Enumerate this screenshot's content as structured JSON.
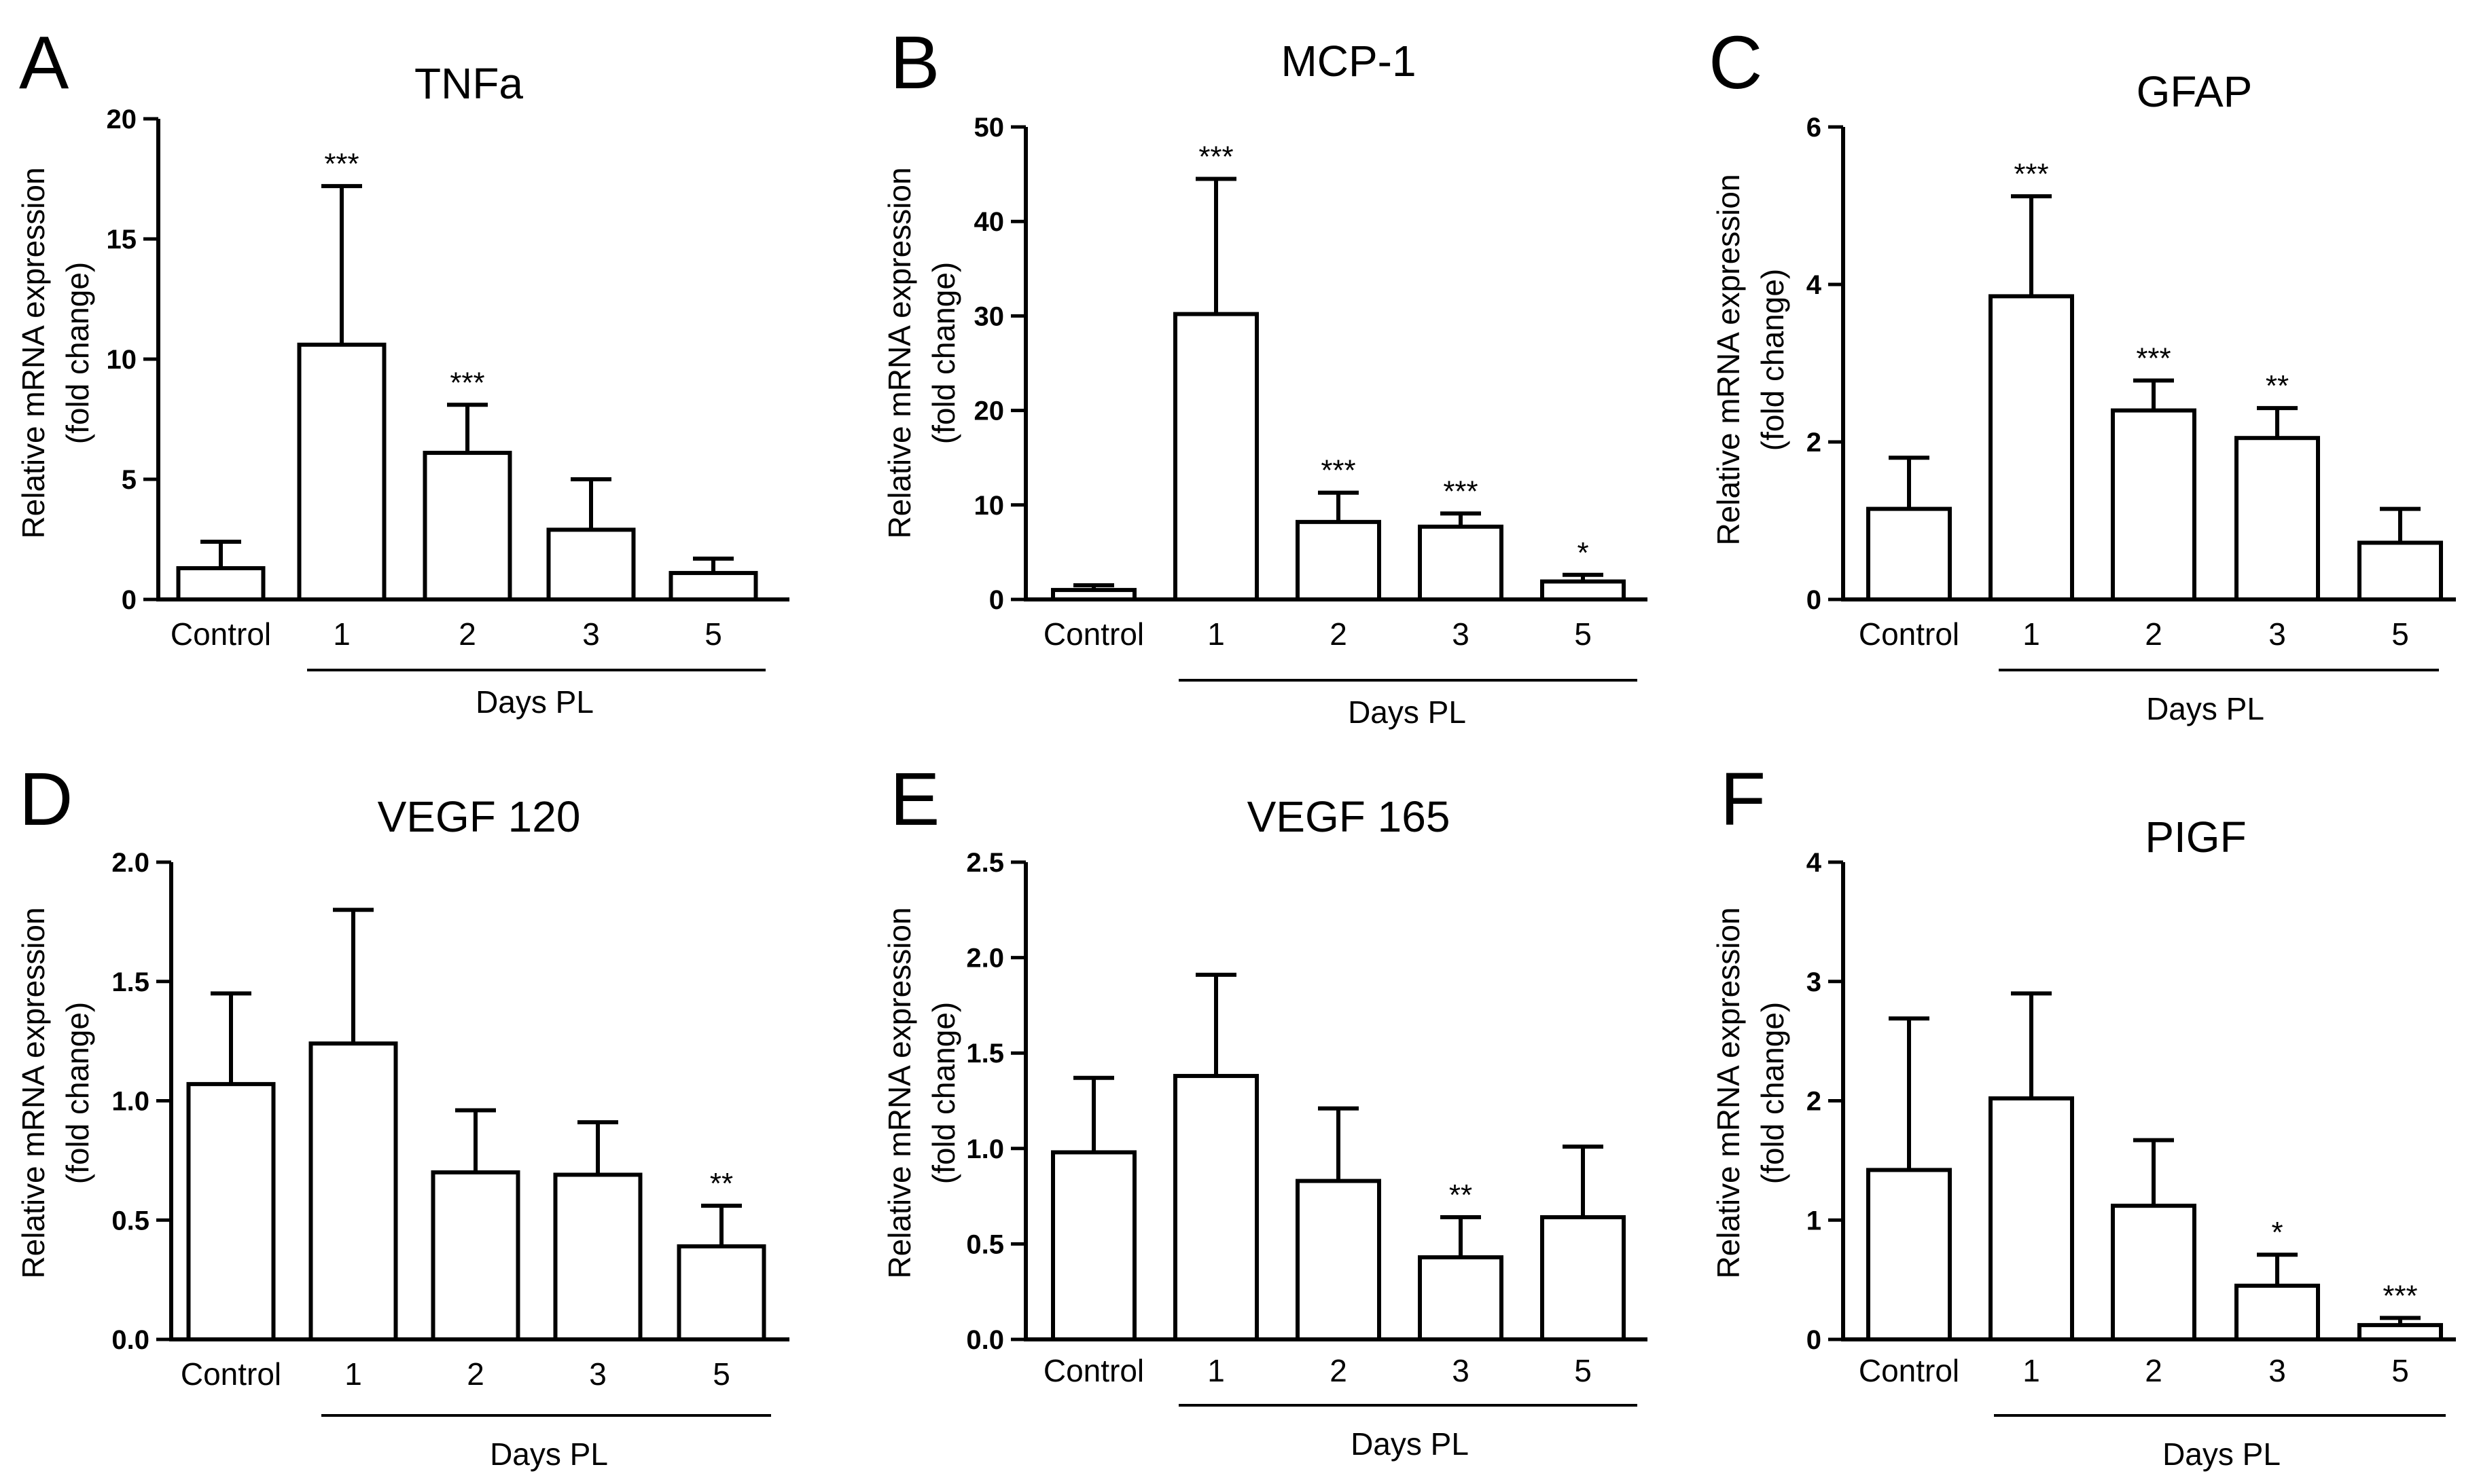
{
  "chart_data": [
    {
      "panel": "A",
      "type": "bar",
      "title": "TNFa",
      "ylabel": [
        "Relative mRNA expression",
        "(fold change)"
      ],
      "xlabel": "Days PL",
      "categories": [
        "Control",
        "1",
        "2",
        "3",
        "5"
      ],
      "values": [
        1.3,
        10.6,
        6.1,
        2.9,
        1.1
      ],
      "errors": [
        1.1,
        6.6,
        2.0,
        2.1,
        0.6
      ],
      "significance": [
        "",
        "***",
        "***",
        "",
        ""
      ],
      "ylim": [
        0,
        20
      ],
      "yticks": [
        "0",
        "5",
        "10",
        "15",
        "20"
      ],
      "ytick_values": [
        0,
        5,
        10,
        15,
        20
      ]
    },
    {
      "panel": "B",
      "type": "bar",
      "title": "MCP-1",
      "ylabel": [
        "Relative mRNA expression",
        "(fold change)"
      ],
      "xlabel": "Days PL",
      "categories": [
        "Control",
        "1",
        "2",
        "3",
        "5"
      ],
      "values": [
        1.0,
        30.2,
        8.2,
        7.7,
        1.9
      ],
      "errors": [
        0.5,
        14.3,
        3.1,
        1.4,
        0.7
      ],
      "significance": [
        "",
        "***",
        "***",
        "***",
        "*"
      ],
      "ylim": [
        0,
        50
      ],
      "yticks": [
        "0",
        "10",
        "20",
        "30",
        "40",
        "50"
      ],
      "ytick_values": [
        0,
        10,
        20,
        30,
        40,
        50
      ]
    },
    {
      "panel": "C",
      "type": "bar",
      "title": "GFAP",
      "ylabel": [
        "Relative mRNA expression",
        "(fold change)"
      ],
      "xlabel": "Days PL",
      "categories": [
        "Control",
        "1",
        "2",
        "3",
        "5"
      ],
      "values": [
        1.15,
        3.85,
        2.4,
        2.05,
        0.72
      ],
      "errors": [
        0.65,
        1.27,
        0.38,
        0.38,
        0.43
      ],
      "significance": [
        "",
        "***",
        "***",
        "**",
        ""
      ],
      "ylim": [
        0,
        6
      ],
      "yticks": [
        "0",
        "2",
        "4",
        "6"
      ],
      "ytick_values": [
        0,
        2,
        4,
        6
      ]
    },
    {
      "panel": "D",
      "type": "bar",
      "title": "VEGF 120",
      "ylabel": [
        "Relative mRNA expression",
        "(fold change)"
      ],
      "xlabel": "Days PL",
      "categories": [
        "Control",
        "1",
        "2",
        "3",
        "5"
      ],
      "values": [
        1.07,
        1.24,
        0.7,
        0.69,
        0.39
      ],
      "errors": [
        0.38,
        0.56,
        0.26,
        0.22,
        0.17
      ],
      "significance": [
        "",
        "",
        "",
        "",
        "**"
      ],
      "ylim": [
        0,
        2.0
      ],
      "yticks": [
        "0.0",
        "0.5",
        "1.0",
        "1.5",
        "2.0"
      ],
      "ytick_values": [
        0,
        0.5,
        1.0,
        1.5,
        2.0
      ]
    },
    {
      "panel": "E",
      "type": "bar",
      "title": "VEGF 165",
      "ylabel": [
        "Relative mRNA expression",
        "(fold change)"
      ],
      "xlabel": "Days PL",
      "categories": [
        "Control",
        "1",
        "2",
        "3",
        "5"
      ],
      "values": [
        0.98,
        1.38,
        0.83,
        0.43,
        0.64
      ],
      "errors": [
        0.39,
        0.53,
        0.38,
        0.21,
        0.37
      ],
      "significance": [
        "",
        "",
        "",
        "**",
        ""
      ],
      "ylim": [
        0,
        2.5
      ],
      "yticks": [
        "0.0",
        "0.5",
        "1.0",
        "1.5",
        "2.0",
        "2.5"
      ],
      "ytick_values": [
        0,
        0.5,
        1.0,
        1.5,
        2.0,
        2.5
      ]
    },
    {
      "panel": "F",
      "type": "bar",
      "title": "PIGF",
      "ylabel": [
        "Relative mRNA expression",
        "(fold change)"
      ],
      "xlabel": "Days PL",
      "categories": [
        "Control",
        "1",
        "2",
        "3",
        "5"
      ],
      "values": [
        1.42,
        2.02,
        1.12,
        0.45,
        0.12
      ],
      "errors": [
        1.27,
        0.88,
        0.55,
        0.26,
        0.06
      ],
      "significance": [
        "",
        "",
        "",
        "*",
        "***"
      ],
      "ylim": [
        0,
        4
      ],
      "yticks": [
        "0",
        "1",
        "2",
        "3",
        "4"
      ],
      "ytick_values": [
        0,
        1,
        2,
        3,
        4
      ]
    }
  ]
}
